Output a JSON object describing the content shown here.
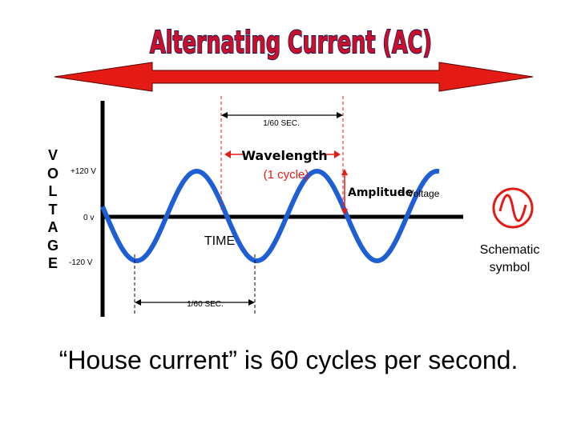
{
  "title": "Alternating Current (AC)",
  "y_axis_letters": [
    "V",
    "O",
    "L",
    "T",
    "A",
    "G",
    "E"
  ],
  "labels": {
    "plus_voltage": "+120 V",
    "zero_voltage": "0 v",
    "minus_voltage": "-120 V",
    "period_top": "1/60 SEC.",
    "period_bottom": "1/60 SEC.",
    "wavelength": "Wavelength",
    "cycle": "(1 cycle)",
    "amplitude": "Amplitude",
    "voltage": "= Voltage",
    "time": "TIME",
    "schematic_line1": "Schematic",
    "schematic_line2": "symbol"
  },
  "caption": "“House current” is 60 cycles per second.",
  "colors": {
    "title_fill": "#c8102e",
    "title_outline": "#1a1a4d",
    "arrow": "#e31b14",
    "wave": "#1f5fd6",
    "annotation": "#e31b14",
    "axis": "#000000"
  },
  "icons": [
    "double-arrow-icon",
    "ac-source-symbol-icon"
  ]
}
